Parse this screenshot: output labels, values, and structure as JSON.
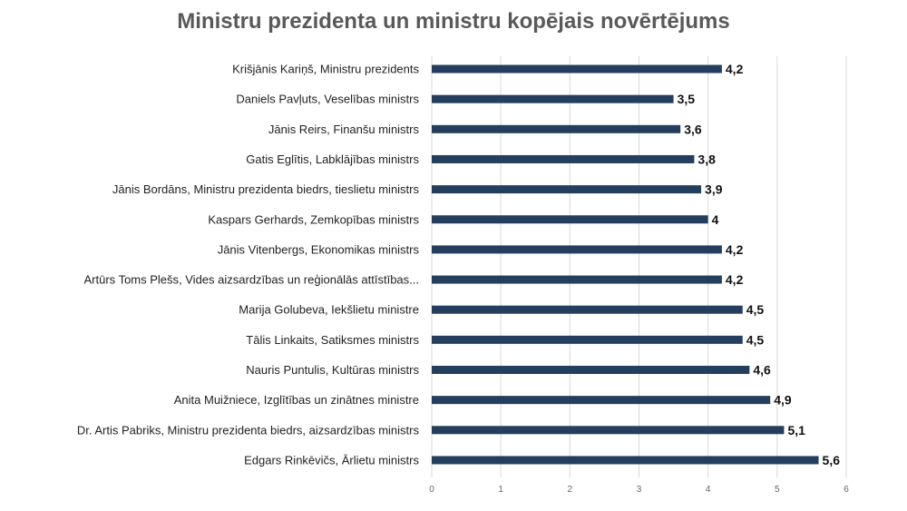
{
  "chart_data": {
    "type": "bar",
    "orientation": "horizontal",
    "title": "Ministru prezidenta un ministru kopējais novērtējums",
    "categories": [
      "Krišjānis Kariņš, Ministru prezidents",
      "Daniels Pavļuts, Veselības ministrs",
      "Jānis Reirs, Finanšu ministrs",
      "Gatis Eglītis, Labklājības ministrs",
      "Jānis Bordāns, Ministru prezidenta biedrs, tieslietu ministrs",
      "Kaspars Gerhards, Zemkopības ministrs",
      "Jānis Vitenbergs, Ekonomikas ministrs",
      "Artūrs Toms Plešs, Vides aizsardzības un reģionālās attīstības...",
      "Marija Golubeva, Iekšlietu ministre",
      "Tālis Linkaits, Satiksmes ministrs",
      "Nauris Puntulis, Kultūras ministrs",
      "Anita Muižniece, Izglītības un zinātnes ministre",
      "Dr. Artis Pabriks, Ministru prezidenta biedrs, aizsardzības ministrs",
      "Edgars Rinkēvičs, Ārlietu ministrs"
    ],
    "values": [
      4.2,
      3.5,
      3.6,
      3.8,
      3.9,
      4,
      4.2,
      4.2,
      4.5,
      4.5,
      4.6,
      4.9,
      5.1,
      5.6
    ],
    "value_labels": [
      "4,2",
      "3,5",
      "3,6",
      "3,8",
      "3,9",
      "4",
      "4,2",
      "4,2",
      "4,5",
      "4,5",
      "4,6",
      "4,9",
      "5,1",
      "5,6"
    ],
    "xlim": [
      0,
      6
    ],
    "x_ticks": [
      "0",
      "1",
      "2",
      "3",
      "4",
      "5",
      "6"
    ],
    "grid": "vertical",
    "bar_color": "#243f5e",
    "grid_color": "#d9d9d9"
  }
}
